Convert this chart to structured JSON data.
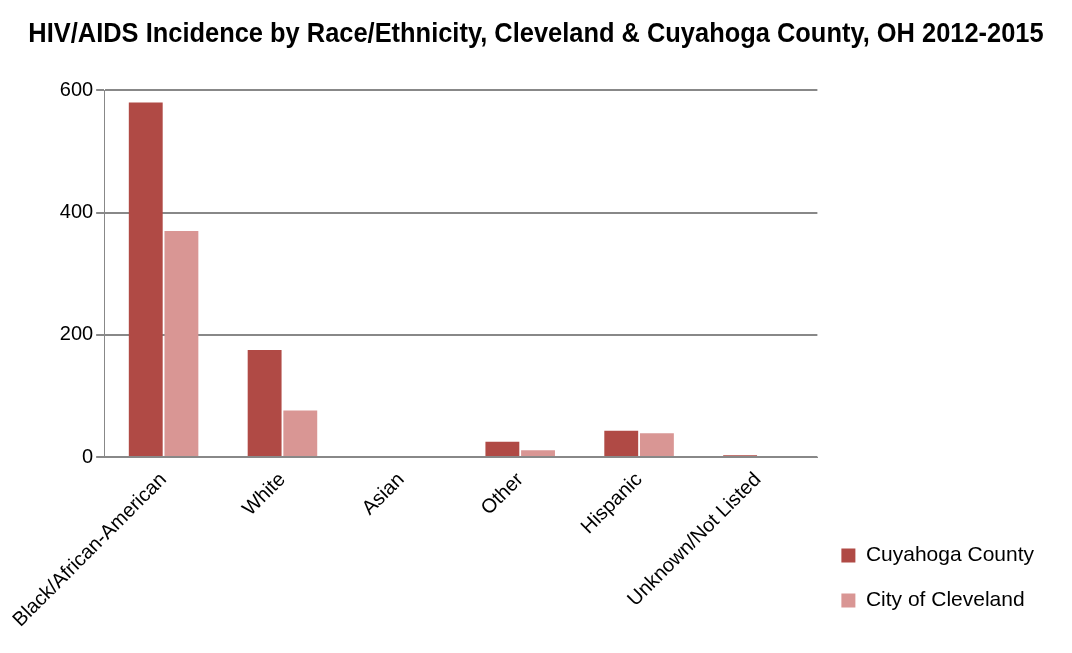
{
  "chart_data": {
    "type": "bar",
    "title": "HIV/AIDS Incidence by Race/Ethnicity, Cleveland & Cuyahoga County, OH 2012-2015",
    "categories": [
      "Black/African-American",
      "White",
      "Asian",
      "Other",
      "Hispanic",
      "Unknown/Not Listed"
    ],
    "series": [
      {
        "name": "Cuyahoga County",
        "color": "#b04a45",
        "values": [
          580,
          175,
          null,
          25,
          43,
          3
        ]
      },
      {
        "name": "City of Cleveland",
        "color": "#d99694",
        "values": [
          370,
          76,
          null,
          11,
          39,
          null
        ]
      }
    ],
    "ylim": [
      0,
      600
    ],
    "yticks": [
      0,
      200,
      400,
      600
    ],
    "grid": "y",
    "legend": "bottom right"
  }
}
